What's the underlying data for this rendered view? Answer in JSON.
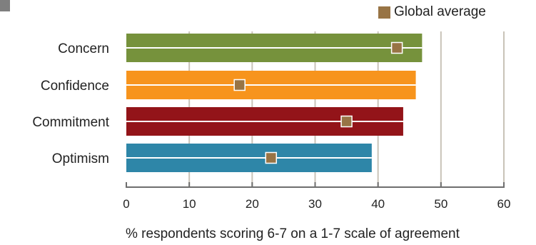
{
  "chart_data": {
    "type": "bar",
    "orientation": "horizontal",
    "categories": [
      "Concern",
      "Confidence",
      "Commitment",
      "Optimism"
    ],
    "series": [
      {
        "values": [
          47,
          46,
          44,
          39
        ],
        "colors": [
          "#76923c",
          "#f7941d",
          "#931419",
          "#2e86a8"
        ]
      },
      {
        "name": "Global average",
        "type": "marker",
        "values": [
          43,
          18,
          35,
          23
        ],
        "color": "#987445"
      }
    ],
    "xlabel": "% respondents scoring 6-7 on a 1-7 scale of agreement",
    "ylabel": "",
    "xlim": [
      0,
      60
    ],
    "xticks": [
      0,
      10,
      20,
      30,
      40,
      50,
      60
    ],
    "grid": true,
    "legend_position": "top-right"
  },
  "legend": {
    "label": "Global average",
    "color": "#987445"
  }
}
